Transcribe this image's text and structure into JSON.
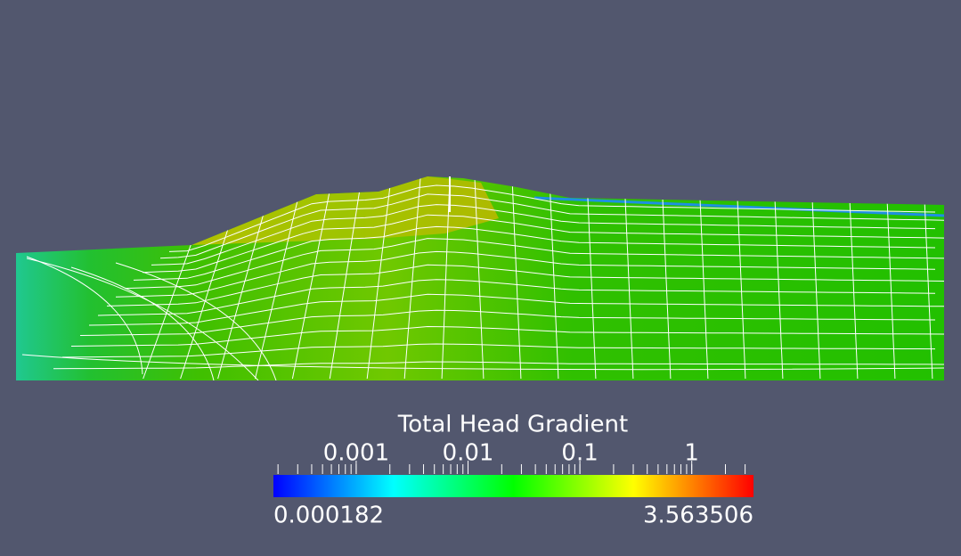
{
  "legend": {
    "title": "Total Head Gradient",
    "scale": "log",
    "range": [
      0.000182,
      3.563506
    ],
    "ticks": [
      0.001,
      0.01,
      0.1,
      1
    ],
    "colormap": [
      "#0000ff",
      "#00ffff",
      "#00ff00",
      "#ffff00",
      "#ff0000"
    ]
  }
}
